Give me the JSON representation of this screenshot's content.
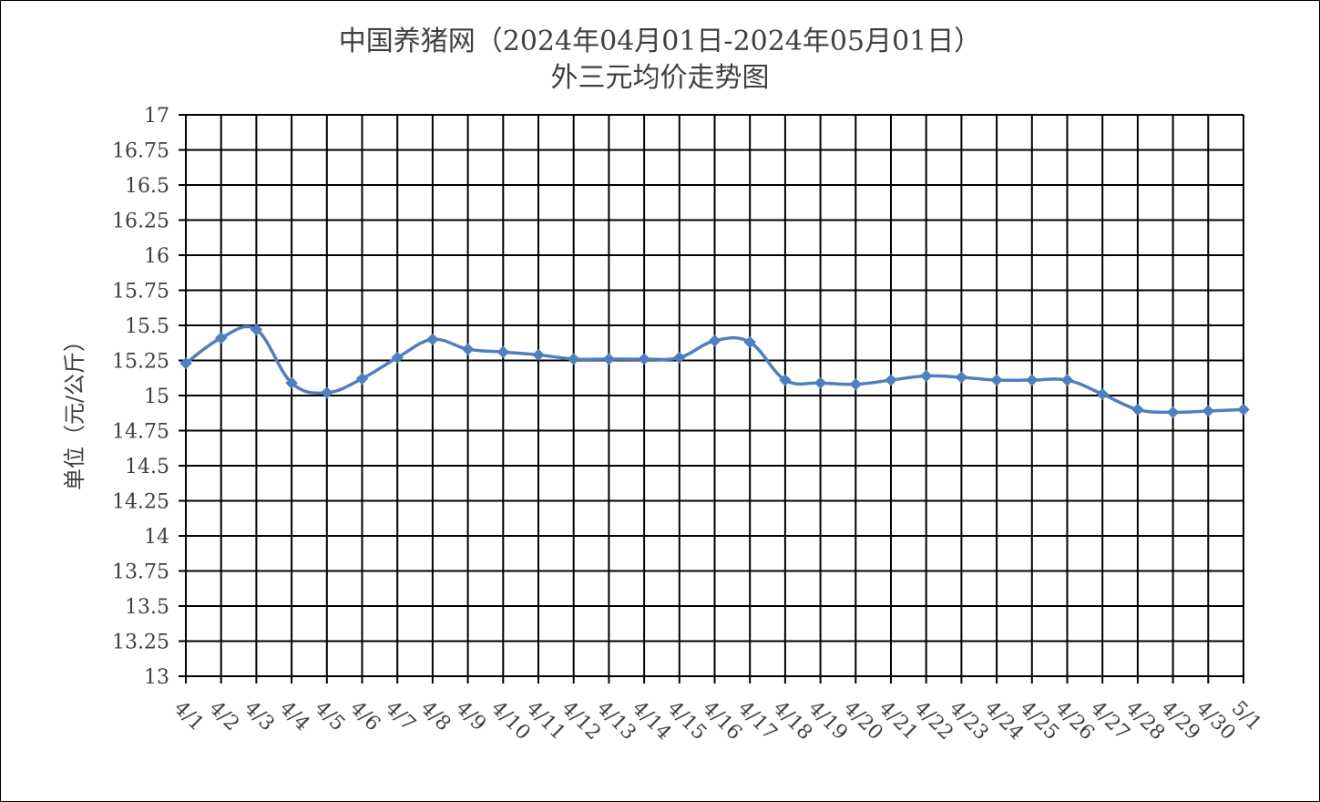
{
  "chart_data": {
    "type": "line",
    "title": "中国养猪网（2024年04月01日-2024年05月01日）",
    "subtitle": "外三元均价走势图",
    "xlabel": "",
    "ylabel": "单位（元/公斤）",
    "ylim": [
      13,
      17
    ],
    "yticks": [
      "17",
      "16.75",
      "16.5",
      "16.25",
      "16",
      "15.75",
      "15.5",
      "15.25",
      "15",
      "14.75",
      "14.5",
      "14.25",
      "14",
      "13.75",
      "13.5",
      "13.25",
      "13"
    ],
    "categories": [
      "4/1",
      "4/2",
      "4/3",
      "4/4",
      "4/5",
      "4/6",
      "4/7",
      "4/8",
      "4/9",
      "4/10",
      "4/11",
      "4/12",
      "4/13",
      "4/14",
      "4/15",
      "4/16",
      "4/17",
      "4/18",
      "4/19",
      "4/20",
      "4/21",
      "4/22",
      "4/23",
      "4/24",
      "4/25",
      "4/26",
      "4/27",
      "4/28",
      "4/29",
      "4/30",
      "5/1"
    ],
    "values": [
      15.23,
      15.41,
      15.47,
      15.09,
      15.02,
      15.12,
      15.27,
      15.4,
      15.33,
      15.31,
      15.29,
      15.26,
      15.26,
      15.26,
      15.27,
      15.39,
      15.38,
      15.11,
      15.09,
      15.08,
      15.11,
      15.14,
      15.13,
      15.11,
      15.11,
      15.11,
      15.01,
      14.9,
      14.88,
      14.89,
      14.9
    ],
    "grid": true,
    "legend": "none",
    "colors": {
      "line": "#4f7fbf",
      "grid": "#000000",
      "text": "#404040"
    }
  }
}
